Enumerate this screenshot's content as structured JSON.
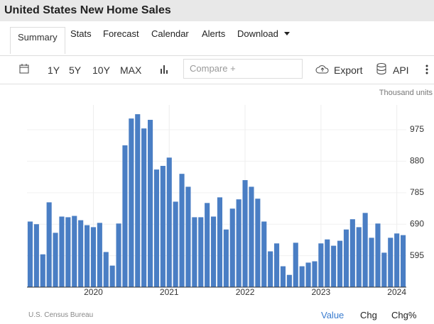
{
  "header": {
    "title": "United States New Home Sales"
  },
  "tabs": [
    "Summary",
    "Stats",
    "Forecast",
    "Calendar",
    "Alerts",
    "Download"
  ],
  "toolbar": {
    "ranges": [
      "1Y",
      "5Y",
      "10Y",
      "MAX"
    ],
    "compare": "Compare +",
    "export": "Export",
    "api": "API"
  },
  "chart_data": {
    "type": "bar",
    "units": "Thousand units",
    "color": "#4a7ec4",
    "categories": [
      null,
      null,
      null,
      null,
      null,
      null,
      null,
      null,
      null,
      null,
      "2020",
      null,
      null,
      null,
      null,
      null,
      null,
      null,
      null,
      null,
      null,
      null,
      "2021",
      null,
      null,
      null,
      null,
      null,
      null,
      null,
      null,
      null,
      null,
      null,
      "2022",
      null,
      null,
      null,
      null,
      null,
      null,
      null,
      null,
      null,
      null,
      null,
      "2023",
      null,
      null,
      null,
      null,
      null,
      null,
      null,
      null,
      null,
      null,
      null,
      "2024",
      null
    ],
    "values": [
      698,
      690,
      599,
      756,
      664,
      713,
      711,
      715,
      702,
      687,
      681,
      694,
      606,
      565,
      692,
      928,
      1009,
      1022,
      979,
      1005,
      855,
      866,
      891,
      758,
      842,
      803,
      711,
      711,
      754,
      713,
      771,
      674,
      737,
      765,
      823,
      803,
      767,
      698,
      608,
      632,
      563,
      537,
      634,
      563,
      574,
      578,
      632,
      644,
      625,
      640,
      674,
      705,
      681,
      724,
      649,
      692,
      604,
      649,
      662,
      657
    ],
    "ylim": [
      500,
      1050
    ],
    "yticks": [
      595,
      690,
      785,
      880,
      975
    ],
    "grid": true,
    "source": "U.S. Census Bureau"
  },
  "footer": {
    "options": [
      "Value",
      "Chg",
      "Chg%"
    ]
  }
}
